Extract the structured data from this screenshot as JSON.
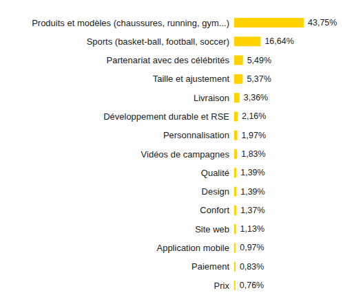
{
  "chart_data": {
    "type": "bar",
    "orientation": "horizontal",
    "categories": [
      "Produits et modèles (chaussures, running, gym...)",
      "Sports (basket-ball, football, soccer)",
      "Partenariat avec des célébrités",
      "Taille et ajustement",
      "Livraison",
      "Développement durable et RSE",
      "Personnalisation",
      "Vidéos de campagnes",
      "Qualité",
      "Design",
      "Confort",
      "Site web",
      "Application mobile",
      "Paiement",
      "Prix"
    ],
    "values": [
      43.75,
      16.64,
      5.49,
      5.37,
      3.36,
      2.16,
      1.97,
      1.83,
      1.39,
      1.39,
      1.37,
      1.13,
      0.97,
      0.83,
      0.76
    ],
    "value_labels": [
      "43,75%",
      "16,64%",
      "5,49%",
      "5,37%",
      "3,36%",
      "2,16%",
      "1,97%",
      "1,83%",
      "1,39%",
      "1,39%",
      "1,37%",
      "1,13%",
      "0,97%",
      "0,83%",
      "0,76%"
    ],
    "color": "#ffd200",
    "xlim": [
      0,
      43.75
    ],
    "data_labels": true,
    "tick_labels": false,
    "grid": false
  }
}
